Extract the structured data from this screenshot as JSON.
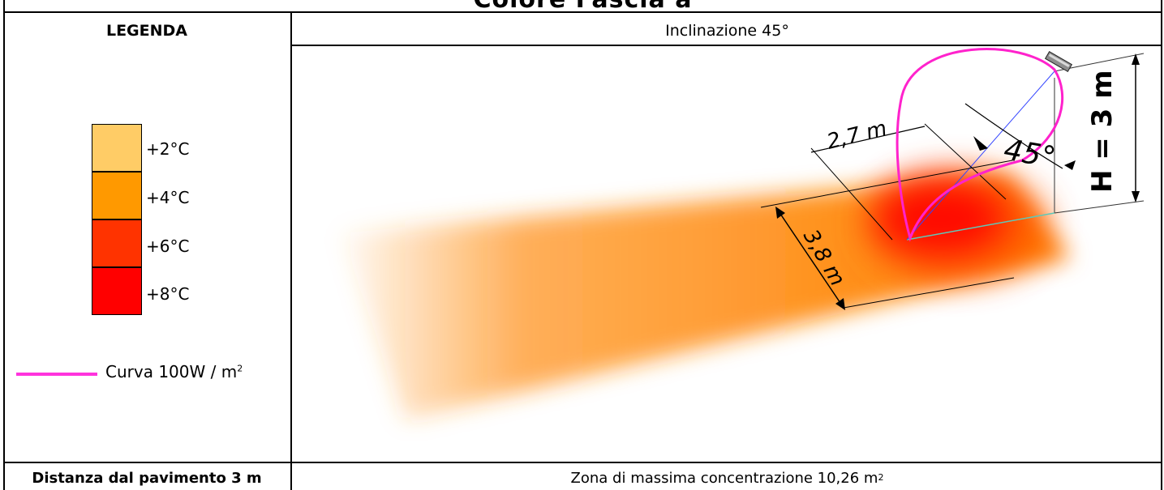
{
  "header": {
    "title": "Colore Fascia a"
  },
  "legend": {
    "title": "LEGENDA",
    "items": [
      {
        "label": "+2°C",
        "color": "#ffcc66"
      },
      {
        "label": "+4°C",
        "color": "#ff9900"
      },
      {
        "label": "+6°C",
        "color": "#ff3300"
      },
      {
        "label": "+8°C",
        "color": "#ff0000"
      }
    ],
    "curve": {
      "label": "Curva 100W / m",
      "sup": "2",
      "color": "#ff33dd"
    }
  },
  "diagram": {
    "title": "Inclinazione 45°",
    "dim_width": "2,7 m",
    "dim_length": "3,8 m",
    "angle": "45°",
    "height": "H = 3 m"
  },
  "footer": {
    "left": "Distanza dal pavimento 3 m",
    "right": "Zona di massima concentrazione 10,26 m",
    "right_sup": "2"
  }
}
